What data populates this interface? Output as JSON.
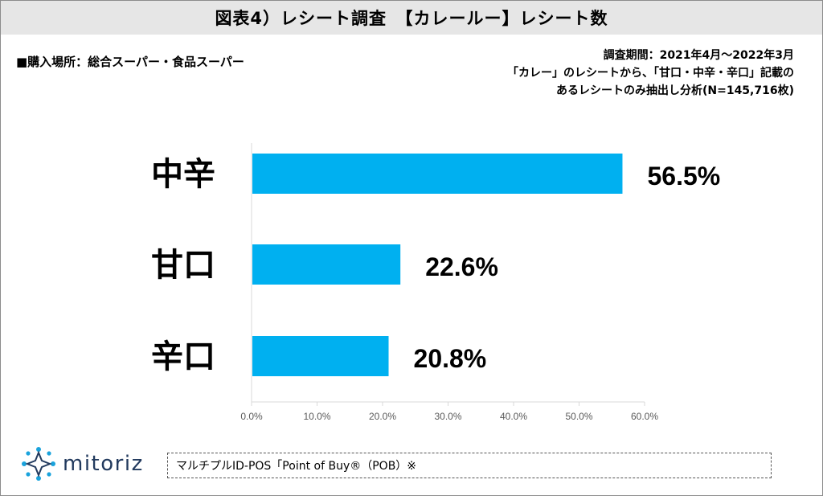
{
  "header": {
    "title": "図表4）レシート調査　【カレールー】レシート数"
  },
  "purchase_place": "■購入場所：総合スーパー・食品スーパー",
  "notes": {
    "line1": "調査期間：2021年4月～2022年3月",
    "line2": "「カレー」のレシートから、「甘口・中辛・辛口」記載の",
    "line3": "あるレシートのみ抽出し分析(N=145,716枚)"
  },
  "chart_data": {
    "type": "bar",
    "orientation": "horizontal",
    "categories": [
      "中辛",
      "甘口",
      "辛口"
    ],
    "values": [
      56.5,
      22.6,
      20.8
    ],
    "value_labels": [
      "56.5%",
      "22.6%",
      "20.8%"
    ],
    "xlim": [
      0,
      60
    ],
    "x_ticks": [
      "0.0%",
      "10.0%",
      "20.0%",
      "30.0%",
      "40.0%",
      "50.0%",
      "60.0%"
    ],
    "bar_color": "#00b0f0",
    "grid": false
  },
  "logo": {
    "text": "mitoriz",
    "color": "#223a5e"
  },
  "source": "マルチプルID-POS「Point of Buy®（POB）※"
}
